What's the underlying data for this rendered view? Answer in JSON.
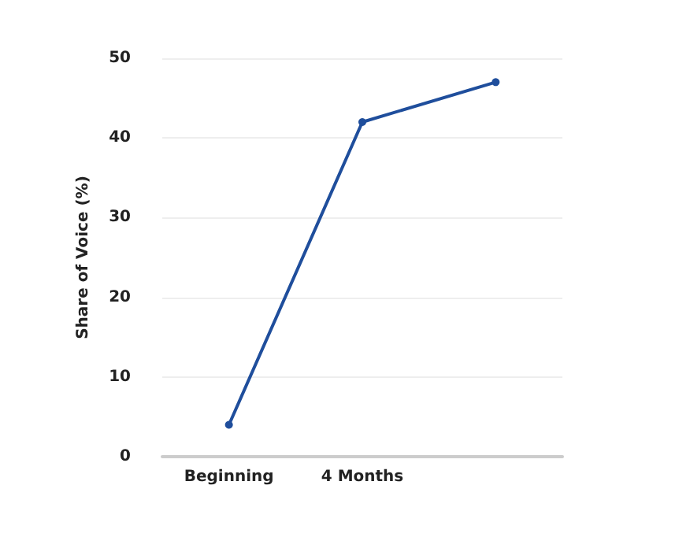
{
  "chart_data": {
    "type": "line",
    "ylabel": "Share of Voice (%)",
    "categories": [
      "Beginning",
      "4 Months",
      null
    ],
    "series": [
      {
        "color": "#1f4e9c",
        "values": [
          4,
          42,
          47
        ]
      }
    ],
    "ylim": [
      0,
      50
    ],
    "yticks": [
      0,
      10,
      20,
      30,
      40,
      50
    ],
    "grid": "y",
    "marker": "circle",
    "line_style": "solid"
  }
}
